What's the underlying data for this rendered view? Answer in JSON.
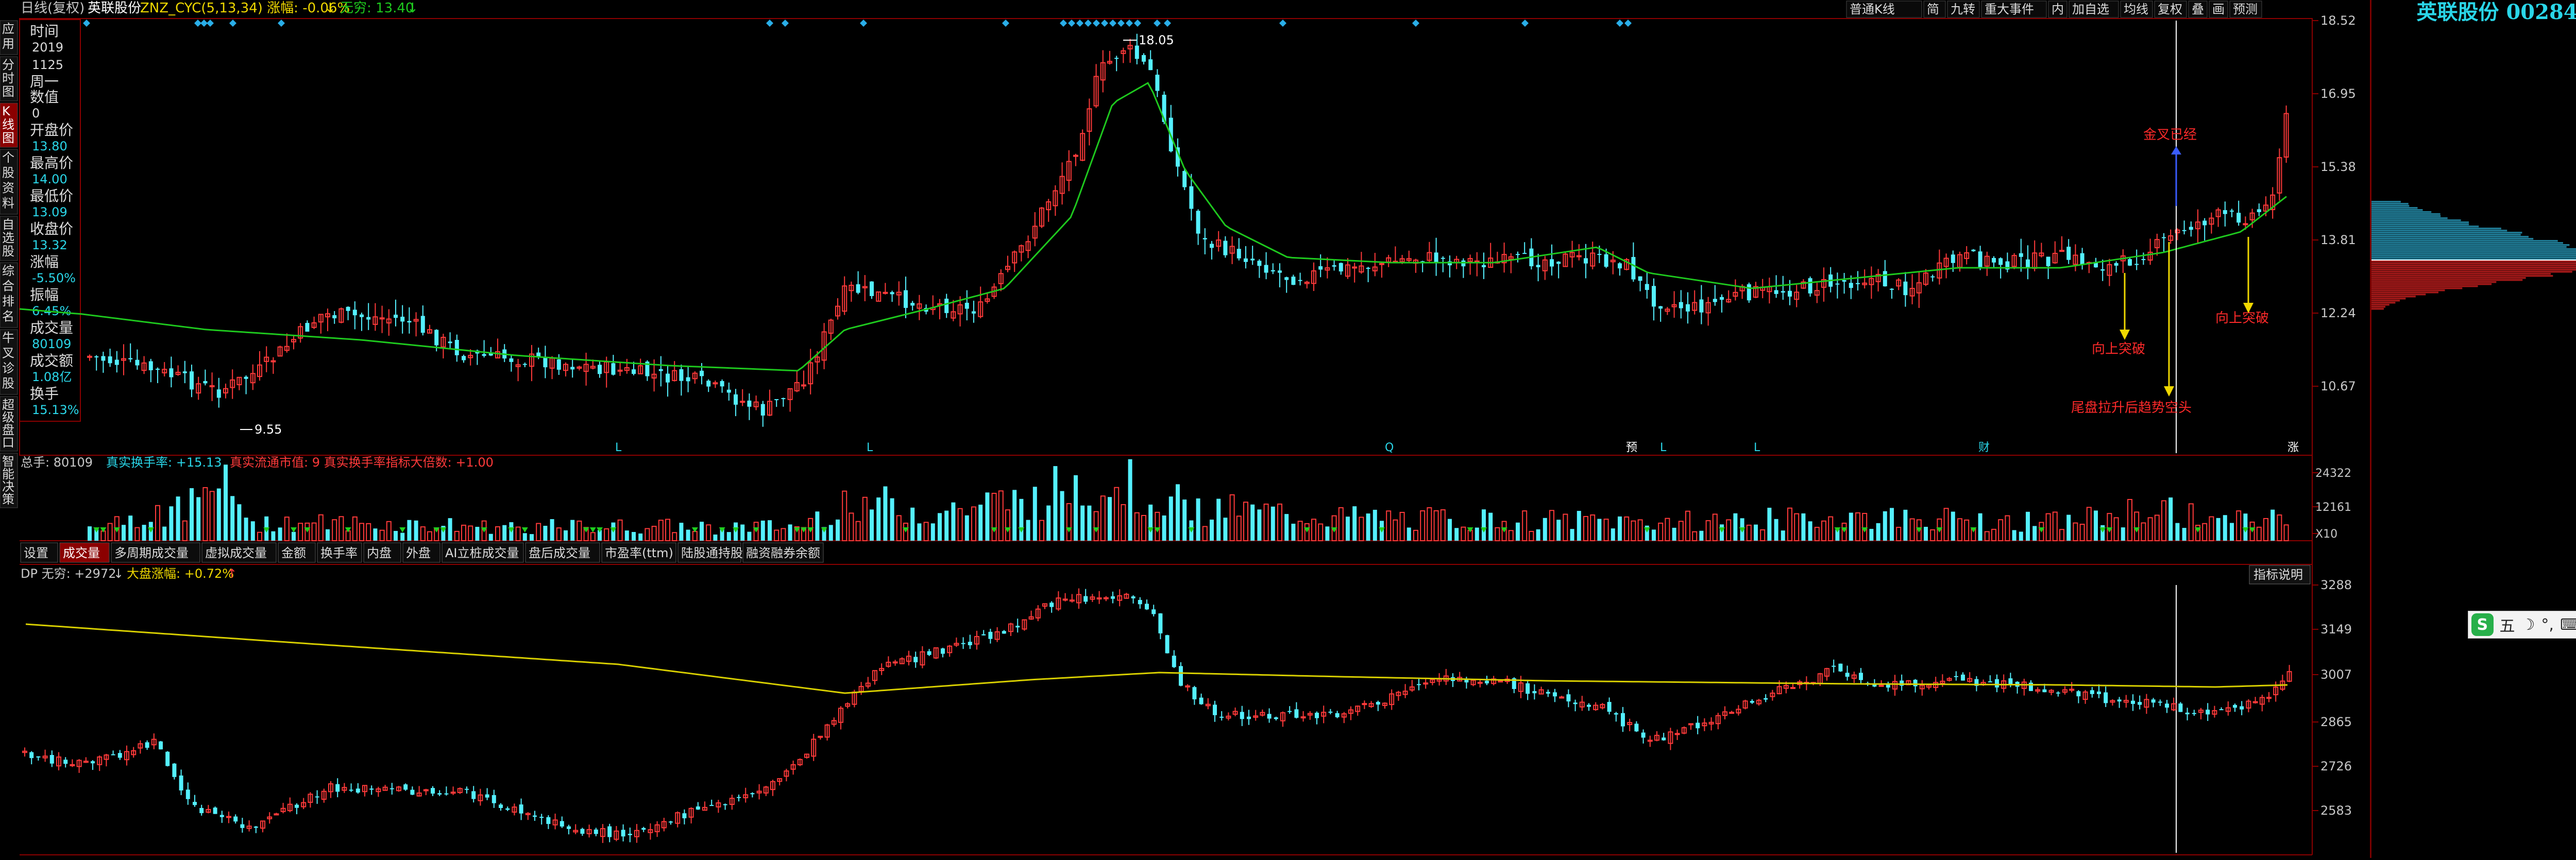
{
  "header": {
    "period_mode": "日线(复权)",
    "stock_name": "英联股份",
    "indicator": "ZNZ_CYC(5,13,34) 涨幅: -0.06%",
    "indicator_arrow": "↓",
    "wuku": "无穷: 13.40",
    "wuku_arrow": "↓"
  },
  "toolbar": {
    "buttons": [
      "普通K线",
      "简",
      "九转",
      "重大事件",
      "内",
      "加自选",
      "均线",
      "复权",
      "叠",
      "画",
      "预测"
    ]
  },
  "left_tabs": [
    "应用",
    "分时图",
    "K线图",
    "个股资料",
    "自选股",
    "综合排名",
    "牛叉诊股",
    "超级盘口",
    "智能决策"
  ],
  "info_panel": [
    {
      "label": "时间",
      "value": "2019"
    },
    {
      "label": "",
      "value": "1125"
    },
    {
      "label": "周一",
      "value": ""
    },
    {
      "label": "数值",
      "value": ""
    },
    {
      "label": "",
      "value": "0"
    },
    {
      "label": "开盘价",
      "value": "13.80"
    },
    {
      "label": "最高价",
      "value": "14.00"
    },
    {
      "label": "最低价",
      "value": "13.09"
    },
    {
      "label": "收盘价",
      "value": "13.32"
    },
    {
      "label": "涨幅",
      "value": "-5.50%"
    },
    {
      "label": "振幅",
      "value": "6.45%"
    },
    {
      "label": "成交量",
      "value": "80109"
    },
    {
      "label": "成交额",
      "value": "1.08亿"
    },
    {
      "label": "换手",
      "value": "15.13%"
    }
  ],
  "price_axis": [
    "18.52",
    "16.95",
    "15.38",
    "13.81",
    "12.24",
    "10.67"
  ],
  "price_annotations": {
    "high": "18.05",
    "low": "9.55",
    "a1": "金叉已经",
    "a2": "向上突破",
    "a3": "尾盘拉升后趋势空头",
    "a4": "向上突破"
  },
  "event_markers": [
    "L",
    "L",
    "Q",
    "预",
    "L",
    "L",
    "财",
    "涨"
  ],
  "volume": {
    "header": "总手: 80109",
    "turnover": "真实换手率: +15.13",
    "float_cap": "真实流通市值: 9 真实换手率指标大倍数: +1.00",
    "axis": [
      "24322",
      "12161",
      "X10"
    ]
  },
  "indicator_tabs": [
    "设置",
    "成交量",
    "多周期成交量",
    "虚拟成交量",
    "金额",
    "换手率",
    "内盘",
    "外盘",
    "AI立桩成交量",
    "盘后成交量",
    "市盈率(ttm)",
    "陆股通持股",
    "融资融券余额"
  ],
  "index_panel": {
    "header": "DP 无穷: +2972",
    "header_arrow": "↓",
    "change": "大盘涨幅: +0.72%",
    "change_arrow": "↑",
    "help": "指标说明",
    "axis": [
      "3288",
      "3149",
      "3007",
      "2865",
      "2726",
      "2583"
    ]
  },
  "side_panel": {
    "title": "英联股份 002846"
  },
  "ime": {
    "logo": "S",
    "items": [
      "五",
      "☽",
      "°,",
      "⌨",
      "👕",
      "🔧"
    ]
  },
  "colors": {
    "up": "#ff3a3a",
    "down": "#54f0ff",
    "ma": "#1ec91e",
    "index_ma": "#d8cf00",
    "vol_marker": "#1ecf1e"
  }
}
